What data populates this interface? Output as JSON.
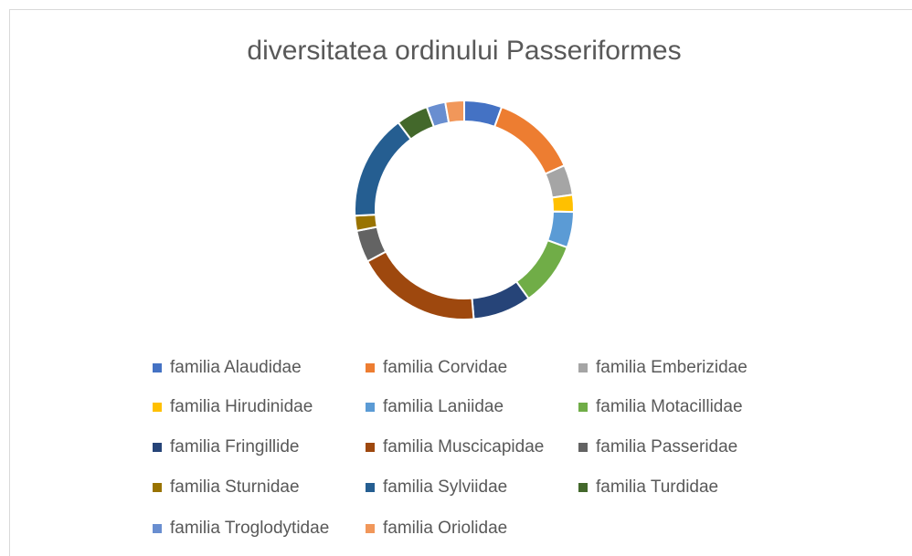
{
  "chart_data": {
    "type": "doughnut",
    "title": "diversitatea ordinului Passeriformes",
    "categories": [
      "familia Alaudidae",
      "familia Corvidae",
      "familia Emberizidae",
      "familia Hirudinidae",
      "familia Laniidae",
      "familia Motacillidae",
      "familia Fringillide",
      "familia Muscicapidae",
      "familia Passeridae",
      "familia Sturnidae",
      "familia Sylviidae",
      "familia Turdidae",
      "familia Troglodytidae",
      "familia Oriolidae"
    ],
    "values": [
      2,
      4.6,
      1.6,
      0.9,
      1.9,
      3.4,
      3.1,
      6.7,
      1.7,
      0.8,
      5.6,
      1.7,
      1,
      1
    ],
    "colors": [
      "#4472C4",
      "#ED7D31",
      "#A5A5A5",
      "#FFC000",
      "#5B9BD5",
      "#70AD47",
      "#264478",
      "#9E480E",
      "#636363",
      "#997300",
      "#255E91",
      "#43682B",
      "#698ED0",
      "#F1975A"
    ],
    "legend": "bottom"
  }
}
